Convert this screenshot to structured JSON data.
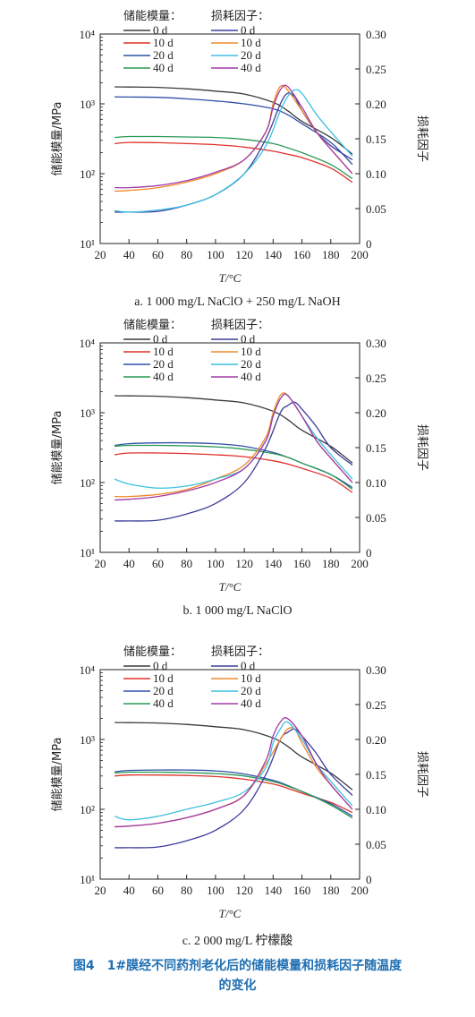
{
  "figure": {
    "caption_line1": "图4　1#膜经不同药剂老化后的储能模量和损耗因子随温度",
    "caption_line2": "的变化"
  },
  "colors": {
    "storage": {
      "0 d": "#3a3a3a",
      "10 d": "#e0312a",
      "20 d": "#2f4fa8",
      "40 d": "#2a9a55"
    },
    "loss": {
      "0 d": "#3b3b9a",
      "10 d": "#f08a28",
      "20 d": "#3cc1e0",
      "40 d": "#a23aa6"
    },
    "caption": "#1f6fb2"
  },
  "chart_data": [
    {
      "type": "line",
      "caption": "a. 1 000 mg/L NaClO + 250 mg/L NaOH",
      "xlabel": "T/°C",
      "ylabel_left": "储能模量/MPa",
      "ylabel_right": "损耗因子",
      "legend_storage_title": "储能模量：",
      "legend_loss_title": "损耗因子：",
      "x_ticks": [
        "20",
        "40",
        "60",
        "80",
        "100",
        "120",
        "140",
        "160",
        "180",
        "200"
      ],
      "y_left_ticks": [
        "10¹",
        "10²",
        "10³",
        "10⁴"
      ],
      "y_right_ticks": [
        "0",
        "0.05",
        "0.10",
        "0.15",
        "0.20",
        "0.25",
        "0.30"
      ],
      "xlim": [
        20,
        200
      ],
      "ylim_left": [
        10,
        10000
      ],
      "ylim_right": [
        0,
        0.3
      ],
      "series_storage": [
        {
          "name": "0 d",
          "x": [
            30,
            40,
            60,
            80,
            100,
            120,
            140,
            150,
            160,
            180,
            195
          ],
          "y": [
            1750,
            1740,
            1720,
            1640,
            1520,
            1380,
            1050,
            800,
            560,
            330,
            190
          ]
        },
        {
          "name": "10 d",
          "x": [
            30,
            40,
            60,
            80,
            100,
            120,
            140,
            150,
            160,
            180,
            195
          ],
          "y": [
            270,
            280,
            278,
            270,
            260,
            240,
            210,
            190,
            170,
            120,
            75
          ]
        },
        {
          "name": "20 d",
          "x": [
            30,
            40,
            60,
            80,
            100,
            120,
            140,
            150,
            160,
            180,
            195
          ],
          "y": [
            1260,
            1250,
            1240,
            1180,
            1100,
            1000,
            850,
            700,
            520,
            280,
            135
          ]
        },
        {
          "name": "40 d",
          "x": [
            30,
            40,
            60,
            80,
            100,
            120,
            140,
            150,
            160,
            180,
            195
          ],
          "y": [
            330,
            340,
            340,
            335,
            330,
            310,
            270,
            235,
            200,
            135,
            85
          ]
        }
      ],
      "series_loss": [
        {
          "name": "0 d",
          "x": [
            30,
            40,
            60,
            80,
            100,
            120,
            135,
            145,
            150,
            155,
            160,
            170,
            180,
            195
          ],
          "y": [
            0.045,
            0.045,
            0.046,
            0.055,
            0.07,
            0.1,
            0.15,
            0.2,
            0.215,
            0.21,
            0.19,
            0.16,
            0.14,
            0.12
          ]
        },
        {
          "name": "10 d",
          "x": [
            30,
            40,
            60,
            80,
            100,
            120,
            135,
            140,
            145,
            150,
            160,
            170,
            180,
            195
          ],
          "y": [
            0.075,
            0.076,
            0.08,
            0.088,
            0.1,
            0.12,
            0.16,
            0.2,
            0.225,
            0.22,
            0.19,
            0.16,
            0.135,
            0.1
          ]
        },
        {
          "name": "20 d",
          "x": [
            30,
            40,
            60,
            80,
            100,
            120,
            135,
            145,
            150,
            155,
            160,
            170,
            180,
            195
          ],
          "y": [
            0.047,
            0.045,
            0.048,
            0.055,
            0.07,
            0.1,
            0.14,
            0.19,
            0.21,
            0.22,
            0.215,
            0.185,
            0.16,
            0.125
          ]
        },
        {
          "name": "40 d",
          "x": [
            30,
            40,
            60,
            80,
            100,
            120,
            135,
            140,
            145,
            150,
            160,
            170,
            180,
            195
          ],
          "y": [
            0.08,
            0.08,
            0.083,
            0.09,
            0.102,
            0.12,
            0.16,
            0.195,
            0.22,
            0.225,
            0.195,
            0.16,
            0.135,
            0.1
          ]
        }
      ]
    },
    {
      "type": "line",
      "caption": "b. 1 000 mg/L NaClO",
      "xlabel": "T/°C",
      "ylabel_left": "储能模量/MPa",
      "ylabel_right": "损耗因子",
      "legend_storage_title": "储能模量：",
      "legend_loss_title": "损耗因子：",
      "x_ticks": [
        "20",
        "40",
        "60",
        "80",
        "100",
        "120",
        "140",
        "160",
        "180",
        "200"
      ],
      "y_left_ticks": [
        "10¹",
        "10²",
        "10³",
        "10⁴"
      ],
      "y_right_ticks": [
        "0",
        "0.05",
        "0.10",
        "0.15",
        "0.20",
        "0.25",
        "0.30"
      ],
      "xlim": [
        20,
        200
      ],
      "ylim_left": [
        10,
        10000
      ],
      "ylim_right": [
        0,
        0.3
      ],
      "series_storage": [
        {
          "name": "0 d",
          "x": [
            30,
            40,
            60,
            80,
            100,
            120,
            140,
            150,
            160,
            180,
            195
          ],
          "y": [
            1750,
            1740,
            1720,
            1640,
            1520,
            1380,
            1050,
            800,
            560,
            330,
            190
          ]
        },
        {
          "name": "10 d",
          "x": [
            30,
            40,
            60,
            80,
            100,
            120,
            140,
            150,
            160,
            180,
            195
          ],
          "y": [
            250,
            265,
            265,
            260,
            250,
            235,
            205,
            185,
            160,
            115,
            72
          ]
        },
        {
          "name": "20 d",
          "x": [
            30,
            40,
            60,
            80,
            100,
            120,
            140,
            150,
            160,
            180,
            195
          ],
          "y": [
            340,
            360,
            370,
            370,
            360,
            330,
            270,
            230,
            190,
            130,
            85
          ]
        },
        {
          "name": "40 d",
          "x": [
            30,
            40,
            60,
            80,
            100,
            120,
            140,
            150,
            160,
            180,
            195
          ],
          "y": [
            330,
            340,
            340,
            335,
            325,
            300,
            260,
            230,
            190,
            130,
            80
          ]
        }
      ],
      "series_loss": [
        {
          "name": "0 d",
          "x": [
            30,
            40,
            60,
            80,
            100,
            120,
            135,
            145,
            150,
            155,
            160,
            170,
            180,
            195
          ],
          "y": [
            0.045,
            0.045,
            0.046,
            0.055,
            0.07,
            0.1,
            0.15,
            0.2,
            0.21,
            0.215,
            0.205,
            0.18,
            0.15,
            0.125
          ]
        },
        {
          "name": "10 d",
          "x": [
            30,
            40,
            60,
            80,
            100,
            120,
            135,
            140,
            145,
            150,
            160,
            170,
            180,
            195
          ],
          "y": [
            0.08,
            0.08,
            0.083,
            0.09,
            0.105,
            0.125,
            0.165,
            0.2,
            0.225,
            0.225,
            0.195,
            0.16,
            0.135,
            0.1
          ]
        },
        {
          "name": "20 d",
          "x": [
            30,
            40,
            60,
            80,
            100,
            120,
            135,
            140,
            145,
            150,
            160,
            170,
            180,
            195
          ],
          "y": [
            0.105,
            0.098,
            0.092,
            0.095,
            0.105,
            0.12,
            0.16,
            0.195,
            0.22,
            0.225,
            0.195,
            0.165,
            0.14,
            0.105
          ]
        },
        {
          "name": "40 d",
          "x": [
            30,
            40,
            60,
            80,
            100,
            120,
            135,
            140,
            145,
            150,
            160,
            170,
            180,
            195
          ],
          "y": [
            0.075,
            0.076,
            0.08,
            0.088,
            0.1,
            0.12,
            0.16,
            0.195,
            0.22,
            0.225,
            0.195,
            0.16,
            0.135,
            0.1
          ]
        }
      ]
    },
    {
      "type": "line",
      "caption": "c. 2 000 mg/L 柠檬酸",
      "xlabel": "T/°C",
      "ylabel_left": "储能模量/MPa",
      "ylabel_right": "损耗因子",
      "legend_storage_title": "储能模量：",
      "legend_loss_title": "损耗因子：",
      "x_ticks": [
        "20",
        "40",
        "60",
        "80",
        "100",
        "120",
        "140",
        "160",
        "180",
        "200"
      ],
      "y_left_ticks": [
        "10¹",
        "10²",
        "10³",
        "10⁴"
      ],
      "y_right_ticks": [
        "0",
        "0.05",
        "0.10",
        "0.15",
        "0.20",
        "0.25",
        "0.30"
      ],
      "xlim": [
        20,
        200
      ],
      "ylim_left": [
        10,
        10000
      ],
      "ylim_right": [
        0,
        0.3
      ],
      "series_storage": [
        {
          "name": "0 d",
          "x": [
            30,
            40,
            60,
            80,
            100,
            120,
            140,
            150,
            160,
            180,
            195
          ],
          "y": [
            1750,
            1740,
            1720,
            1640,
            1520,
            1380,
            1050,
            800,
            560,
            330,
            190
          ]
        },
        {
          "name": "10 d",
          "x": [
            30,
            40,
            60,
            80,
            100,
            120,
            140,
            150,
            160,
            180,
            195
          ],
          "y": [
            300,
            310,
            310,
            305,
            295,
            270,
            230,
            200,
            170,
            125,
            90
          ]
        },
        {
          "name": "20 d",
          "x": [
            30,
            40,
            60,
            80,
            100,
            120,
            140,
            150,
            160,
            180,
            195
          ],
          "y": [
            345,
            360,
            365,
            365,
            355,
            320,
            260,
            220,
            180,
            120,
            80
          ]
        },
        {
          "name": "40 d",
          "x": [
            30,
            40,
            60,
            80,
            100,
            120,
            140,
            150,
            160,
            180,
            195
          ],
          "y": [
            330,
            340,
            340,
            335,
            325,
            300,
            250,
            215,
            180,
            115,
            75
          ]
        }
      ],
      "series_loss": [
        {
          "name": "0 d",
          "x": [
            30,
            40,
            60,
            80,
            100,
            120,
            135,
            145,
            150,
            155,
            160,
            170,
            180,
            195
          ],
          "y": [
            0.045,
            0.045,
            0.046,
            0.055,
            0.07,
            0.1,
            0.15,
            0.2,
            0.21,
            0.215,
            0.205,
            0.18,
            0.15,
            0.12
          ]
        },
        {
          "name": "10 d",
          "x": [
            30,
            40,
            60,
            80,
            100,
            120,
            135,
            145,
            150,
            155,
            160,
            170,
            180,
            195
          ],
          "y": [
            0.075,
            0.076,
            0.08,
            0.088,
            0.1,
            0.12,
            0.165,
            0.2,
            0.215,
            0.215,
            0.195,
            0.16,
            0.135,
            0.1
          ]
        },
        {
          "name": "20 d",
          "x": [
            30,
            40,
            60,
            80,
            100,
            120,
            135,
            140,
            145,
            150,
            160,
            170,
            180,
            195
          ],
          "y": [
            0.09,
            0.085,
            0.09,
            0.1,
            0.11,
            0.125,
            0.16,
            0.195,
            0.215,
            0.225,
            0.2,
            0.165,
            0.14,
            0.105
          ]
        },
        {
          "name": "40 d",
          "x": [
            30,
            40,
            60,
            80,
            100,
            120,
            135,
            140,
            145,
            150,
            160,
            170,
            180,
            195
          ],
          "y": [
            0.075,
            0.076,
            0.08,
            0.088,
            0.1,
            0.12,
            0.17,
            0.205,
            0.225,
            0.23,
            0.205,
            0.165,
            0.135,
            0.1
          ]
        }
      ]
    }
  ]
}
